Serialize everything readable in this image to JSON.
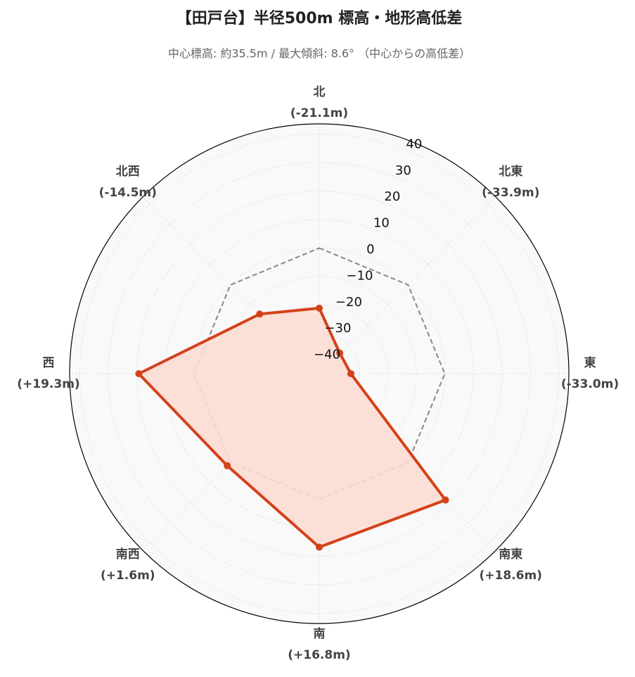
{
  "chart_data": {
    "type": "radar",
    "title": "【田戸台】半径500m 標高・地形高低差",
    "subtitle": "中心標高: 約35.5m / 最大傾斜: 8.6° （中心からの高低差）",
    "categories": [
      "北",
      "北東",
      "東",
      "南東",
      "南",
      "南西",
      "西",
      "北西"
    ],
    "series": [
      {
        "name": "高低差",
        "color": "#d4421a",
        "fill": "#fcddd4",
        "values": [
          -21.1,
          -33.9,
          -33.0,
          18.6,
          16.8,
          1.6,
          19.3,
          -14.5
        ],
        "value_labels": [
          "(-21.1m)",
          "(-33.9m)",
          "(-33.0m)",
          "(+18.6m)",
          "(+16.8m)",
          "(+1.6m)",
          "(+19.3m)",
          "(-14.5m)"
        ]
      }
    ],
    "reference_line": 0,
    "ylim": [
      -44.1,
      43.6
    ],
    "yticks": [
      {
        "value": -40,
        "label": "−40"
      },
      {
        "value": -30,
        "label": "−30"
      },
      {
        "value": -20,
        "label": "−20"
      },
      {
        "value": -10,
        "label": "−10"
      },
      0,
      10,
      20,
      30,
      40
    ],
    "grid": true
  }
}
